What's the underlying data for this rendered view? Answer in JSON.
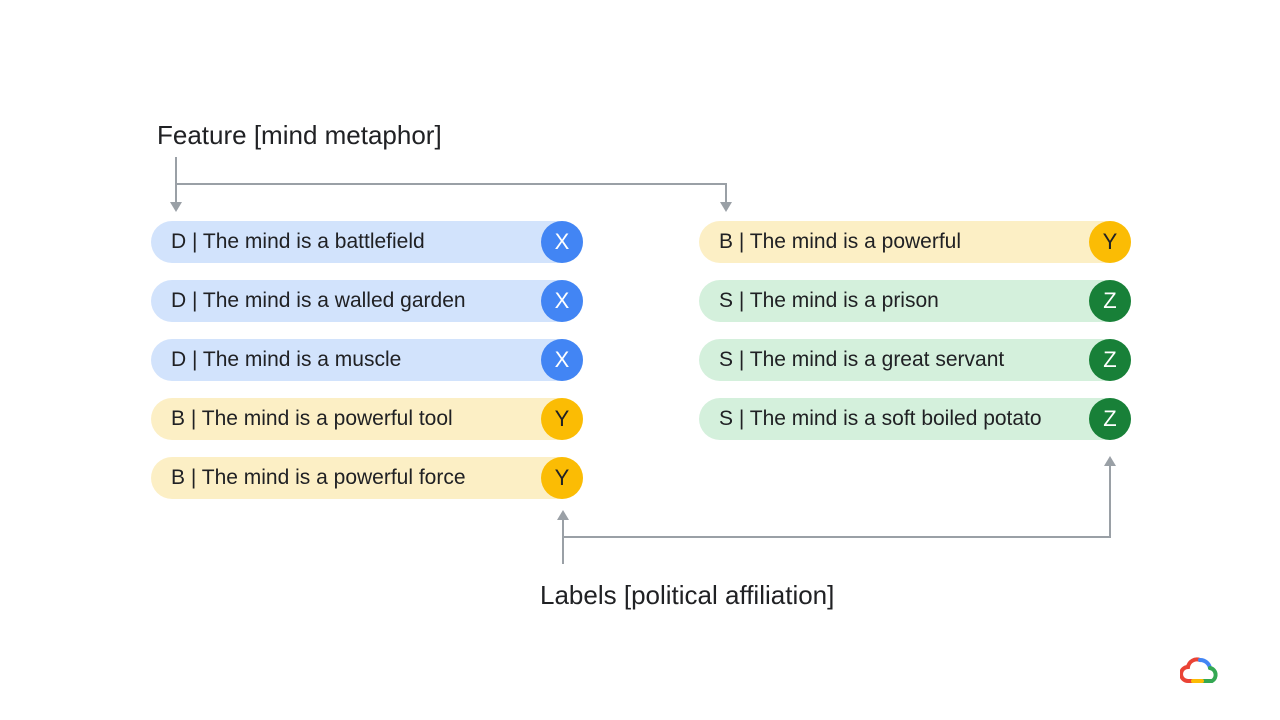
{
  "captions": {
    "feature": "Feature [mind metaphor]",
    "labels": "Labels [political affiliation]"
  },
  "colors": {
    "X": {
      "bg": "#d2e3fc",
      "badge": "#4285f4",
      "badge_text": "#ffffff"
    },
    "Y": {
      "bg": "#fcefc5",
      "badge": "#fbbc04",
      "badge_text": "#202124"
    },
    "Z": {
      "bg": "#d4f0dc",
      "badge": "#188038",
      "badge_text": "#ffffff"
    },
    "arrow": "#9aa0a6"
  },
  "left_column": [
    {
      "text": "D | The mind is a battlefield",
      "label": "X"
    },
    {
      "text": "D | The mind is a walled garden",
      "label": "X"
    },
    {
      "text": "D | The mind is a muscle",
      "label": "X"
    },
    {
      "text": "B | The mind is a powerful tool",
      "label": "Y"
    },
    {
      "text": "B | The mind is a powerful force",
      "label": "Y"
    }
  ],
  "right_column": [
    {
      "text": "B | The mind is a powerful",
      "label": "Y"
    },
    {
      "text": "S | The mind is a prison",
      "label": "Z"
    },
    {
      "text": "S | The mind is a great servant",
      "label": "Z"
    },
    {
      "text": "S | The mind is a soft boiled potato",
      "label": "Z"
    }
  ]
}
